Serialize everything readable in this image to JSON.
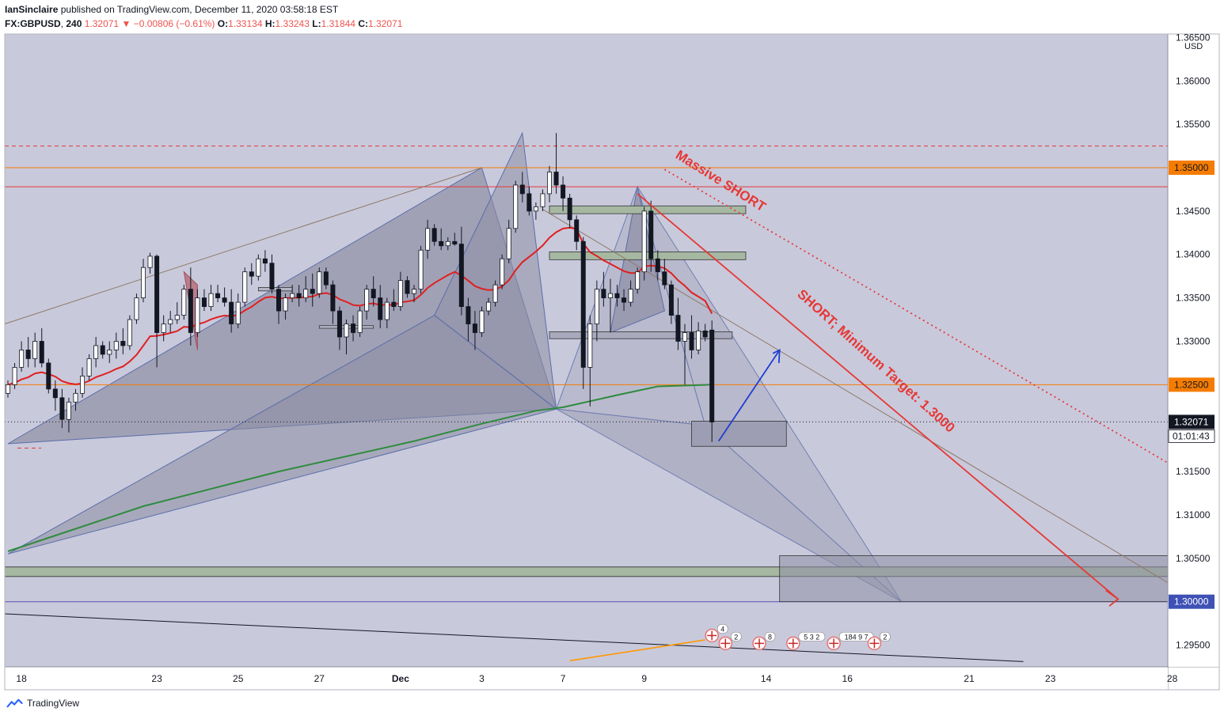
{
  "header": {
    "author": "IanSinclaire",
    "published_text": "published on TradingView.com, December 11, 2020 03:58:18 EST",
    "symbol": "FX:GBPUSD",
    "interval": "240",
    "last": "1.32071",
    "change": "−0.00806 (−0.61%)",
    "o_label": "O:",
    "o_value": "1.33134",
    "h_label": "H:",
    "h_value": "1.33243",
    "l_label": "L:",
    "l_value": "1.31844",
    "c_label": "C:",
    "c_value": "1.32071"
  },
  "footer": {
    "brand": "TradingView"
  },
  "chart_data": {
    "type": "candlestick",
    "y_axis": {
      "currency": "USD",
      "ylim": [
        1.2925,
        1.3654
      ],
      "ticks": [
        "1.36500",
        "1.36000",
        "1.35500",
        "1.35000",
        "1.34500",
        "1.34000",
        "1.33500",
        "1.33000",
        "1.32500",
        "1.32071",
        "1.31500",
        "1.31000",
        "1.30500",
        "1.30000",
        "1.29500"
      ],
      "highlighted": [
        {
          "value": 1.35,
          "label": "1.35000",
          "color": "#f57c00"
        },
        {
          "value": 1.325,
          "label": "1.32500",
          "color": "#f57c00"
        },
        {
          "value": 1.32071,
          "label": "1.32071",
          "color": "#131722"
        },
        {
          "value": 1.3,
          "label": "1.30000",
          "color": "#3f51b5"
        }
      ],
      "countdown": "01:01:43"
    },
    "x_axis": {
      "ticks": [
        {
          "label": "18",
          "bar": 2
        },
        {
          "label": "23",
          "bar": 22
        },
        {
          "label": "25",
          "bar": 34
        },
        {
          "label": "27",
          "bar": 46
        },
        {
          "label": "Dec",
          "bar": 58
        },
        {
          "label": "3",
          "bar": 70
        },
        {
          "label": "7",
          "bar": 82
        },
        {
          "label": "9",
          "bar": 94
        },
        {
          "label": "14",
          "bar": 112
        },
        {
          "label": "16",
          "bar": 124
        },
        {
          "label": "21",
          "bar": 142
        },
        {
          "label": "23",
          "bar": 154
        },
        {
          "label": "28",
          "bar": 172
        }
      ]
    },
    "horizontal_lines": [
      {
        "value": 1.3525,
        "color": "#e53935",
        "style": "dashed"
      },
      {
        "value": 1.35,
        "color": "#f57c00",
        "style": "solid"
      },
      {
        "value": 1.3478,
        "color": "#e53935",
        "style": "solid"
      },
      {
        "value": 1.325,
        "color": "#f57c00",
        "style": "solid"
      },
      {
        "value": 1.32071,
        "color": "#131722",
        "style": "dotted"
      },
      {
        "value": 1.3,
        "color": "#5c4db1",
        "style": "solid"
      }
    ],
    "annotations": [
      {
        "text": "Massive SHORT",
        "color": "#e53935"
      },
      {
        "text": "SHORT; Minimum Target: 1.3000",
        "color": "#e53935"
      }
    ],
    "event_badges": [
      "4",
      "2",
      "8",
      "5 3 2",
      "184 9 7",
      "2"
    ],
    "candles": [
      [
        1.324,
        1.3255,
        1.3235,
        1.325
      ],
      [
        1.325,
        1.3275,
        1.3245,
        1.327
      ],
      [
        1.327,
        1.33,
        1.3265,
        1.329
      ],
      [
        1.329,
        1.3305,
        1.327,
        1.328
      ],
      [
        1.328,
        1.331,
        1.327,
        1.33
      ],
      [
        1.33,
        1.3315,
        1.327,
        1.3275
      ],
      [
        1.3275,
        1.328,
        1.324,
        1.3245
      ],
      [
        1.3245,
        1.3255,
        1.322,
        1.3235
      ],
      [
        1.3235,
        1.3245,
        1.32,
        1.321
      ],
      [
        1.321,
        1.3235,
        1.3195,
        1.323
      ],
      [
        1.323,
        1.3245,
        1.322,
        1.324
      ],
      [
        1.324,
        1.327,
        1.3235,
        1.326
      ],
      [
        1.326,
        1.3285,
        1.3255,
        1.328
      ],
      [
        1.328,
        1.3305,
        1.327,
        1.3295
      ],
      [
        1.3295,
        1.33,
        1.328,
        1.3285
      ],
      [
        1.3285,
        1.33,
        1.3275,
        1.329
      ],
      [
        1.329,
        1.331,
        1.328,
        1.33
      ],
      [
        1.33,
        1.3315,
        1.3285,
        1.3295
      ],
      [
        1.3295,
        1.333,
        1.329,
        1.3325
      ],
      [
        1.3325,
        1.3355,
        1.332,
        1.335
      ],
      [
        1.335,
        1.3395,
        1.3345,
        1.3385
      ],
      [
        1.3385,
        1.3402,
        1.3378,
        1.3398
      ],
      [
        1.3398,
        1.34,
        1.327,
        1.331
      ],
      [
        1.331,
        1.333,
        1.33,
        1.332
      ],
      [
        1.332,
        1.3335,
        1.331,
        1.3325
      ],
      [
        1.3325,
        1.3345,
        1.332,
        1.333
      ],
      [
        1.333,
        1.3365,
        1.3325,
        1.336
      ],
      [
        1.336,
        1.3385,
        1.3295,
        1.331
      ],
      [
        1.331,
        1.336,
        1.3305,
        1.335
      ],
      [
        1.335,
        1.336,
        1.3335,
        1.334
      ],
      [
        1.334,
        1.3365,
        1.3335,
        1.3355
      ],
      [
        1.3355,
        1.3365,
        1.3345,
        1.335
      ],
      [
        1.335,
        1.3362,
        1.334,
        1.3345
      ],
      [
        1.3345,
        1.336,
        1.331,
        1.332
      ],
      [
        1.332,
        1.3355,
        1.3315,
        1.3345
      ],
      [
        1.3345,
        1.3385,
        1.334,
        1.338
      ],
      [
        1.338,
        1.339,
        1.3365,
        1.3375
      ],
      [
        1.3375,
        1.34,
        1.337,
        1.3395
      ],
      [
        1.3395,
        1.3405,
        1.338,
        1.339
      ],
      [
        1.339,
        1.34,
        1.3355,
        1.336
      ],
      [
        1.336,
        1.3365,
        1.332,
        1.3335
      ],
      [
        1.3335,
        1.3355,
        1.3325,
        1.335
      ],
      [
        1.335,
        1.3365,
        1.3345,
        1.3355
      ],
      [
        1.3355,
        1.3365,
        1.334,
        1.335
      ],
      [
        1.335,
        1.3375,
        1.3345,
        1.336
      ],
      [
        1.336,
        1.3378,
        1.334,
        1.3355
      ],
      [
        1.3355,
        1.3385,
        1.335,
        1.338
      ],
      [
        1.338,
        1.3385,
        1.336,
        1.3365
      ],
      [
        1.3365,
        1.337,
        1.332,
        1.3335
      ],
      [
        1.3335,
        1.334,
        1.329,
        1.3305
      ],
      [
        1.3305,
        1.3325,
        1.3285,
        1.332
      ],
      [
        1.332,
        1.333,
        1.33,
        1.331
      ],
      [
        1.331,
        1.334,
        1.3305,
        1.3335
      ],
      [
        1.3335,
        1.3365,
        1.3325,
        1.336
      ],
      [
        1.336,
        1.3375,
        1.334,
        1.335
      ],
      [
        1.335,
        1.3365,
        1.3315,
        1.3325
      ],
      [
        1.3325,
        1.335,
        1.3315,
        1.3345
      ],
      [
        1.3345,
        1.336,
        1.3335,
        1.334
      ],
      [
        1.334,
        1.338,
        1.3335,
        1.337
      ],
      [
        1.337,
        1.3375,
        1.335,
        1.3355
      ],
      [
        1.3355,
        1.3365,
        1.3345,
        1.336
      ],
      [
        1.336,
        1.341,
        1.3355,
        1.3405
      ],
      [
        1.3405,
        1.344,
        1.3395,
        1.343
      ],
      [
        1.343,
        1.3435,
        1.341,
        1.3415
      ],
      [
        1.3415,
        1.343,
        1.3405,
        1.341
      ],
      [
        1.341,
        1.342,
        1.3405,
        1.3415
      ],
      [
        1.3415,
        1.3425,
        1.341,
        1.3412
      ],
      [
        1.3412,
        1.3432,
        1.333,
        1.334
      ],
      [
        1.334,
        1.335,
        1.33,
        1.332
      ],
      [
        1.332,
        1.3335,
        1.329,
        1.331
      ],
      [
        1.331,
        1.334,
        1.3305,
        1.3335
      ],
      [
        1.3335,
        1.335,
        1.333,
        1.3345
      ],
      [
        1.3345,
        1.337,
        1.334,
        1.3365
      ],
      [
        1.3365,
        1.34,
        1.336,
        1.3395
      ],
      [
        1.3395,
        1.344,
        1.339,
        1.343
      ],
      [
        1.343,
        1.3485,
        1.3425,
        1.348
      ],
      [
        1.348,
        1.3495,
        1.346,
        1.347
      ],
      [
        1.347,
        1.3478,
        1.3445,
        1.345
      ],
      [
        1.345,
        1.346,
        1.344,
        1.3455
      ],
      [
        1.3455,
        1.3475,
        1.345,
        1.347
      ],
      [
        1.347,
        1.3502,
        1.346,
        1.3495
      ],
      [
        1.3495,
        1.354,
        1.347,
        1.348
      ],
      [
        1.348,
        1.349,
        1.345,
        1.3465
      ],
      [
        1.3465,
        1.347,
        1.343,
        1.344
      ],
      [
        1.344,
        1.3445,
        1.3405,
        1.3415
      ],
      [
        1.3415,
        1.342,
        1.3245,
        1.327
      ],
      [
        1.327,
        1.333,
        1.3225,
        1.332
      ],
      [
        1.332,
        1.337,
        1.33,
        1.336
      ],
      [
        1.336,
        1.338,
        1.334,
        1.335
      ],
      [
        1.335,
        1.3372,
        1.331,
        1.3355
      ],
      [
        1.3355,
        1.3365,
        1.334,
        1.335
      ],
      [
        1.335,
        1.336,
        1.3335,
        1.3345
      ],
      [
        1.3345,
        1.337,
        1.334,
        1.336
      ],
      [
        1.336,
        1.3385,
        1.3355,
        1.338
      ],
      [
        1.338,
        1.3455,
        1.337,
        1.345
      ],
      [
        1.345,
        1.3462,
        1.338,
        1.3395
      ],
      [
        1.3395,
        1.3405,
        1.337,
        1.338
      ],
      [
        1.338,
        1.3395,
        1.336,
        1.3365
      ],
      [
        1.3365,
        1.337,
        1.332,
        1.333
      ],
      [
        1.333,
        1.335,
        1.329,
        1.33
      ],
      [
        1.33,
        1.332,
        1.325,
        1.331
      ],
      [
        1.331,
        1.333,
        1.328,
        1.329
      ],
      [
        1.329,
        1.3322,
        1.3285,
        1.3312
      ],
      [
        1.3312,
        1.332,
        1.33,
        1.3305
      ],
      [
        1.3313,
        1.3324,
        1.3184,
        1.3207
      ]
    ]
  }
}
